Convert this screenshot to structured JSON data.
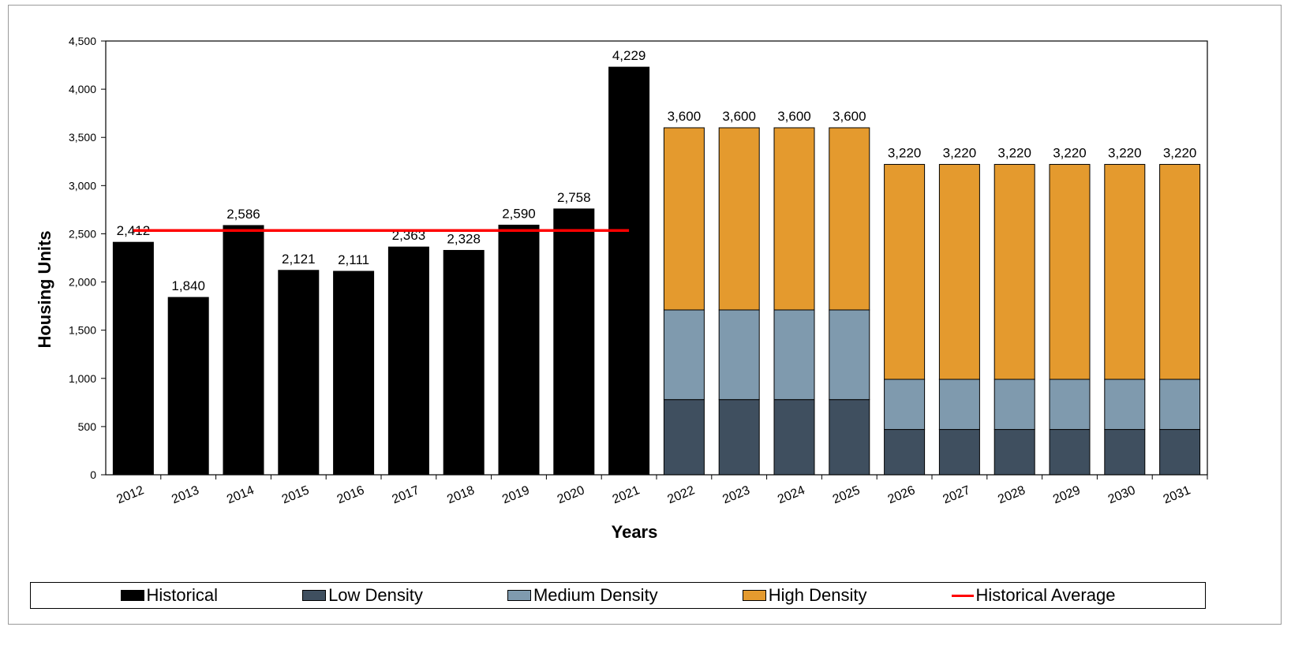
{
  "chart_data": {
    "type": "bar",
    "stacked": true,
    "title": "",
    "xlabel": "Years",
    "ylabel": "Housing Units",
    "ylim": [
      0,
      4500
    ],
    "yticks": [
      0,
      500,
      1000,
      1500,
      2000,
      2500,
      3000,
      3500,
      4000,
      4500
    ],
    "ytick_labels": [
      "0",
      "500",
      "1,000",
      "1,500",
      "2,000",
      "2,500",
      "3,000",
      "3,500",
      "4,000",
      "4,500"
    ],
    "categories": [
      "2012",
      "2013",
      "2014",
      "2015",
      "2016",
      "2017",
      "2018",
      "2019",
      "2020",
      "2021",
      "2022",
      "2023",
      "2024",
      "2025",
      "2026",
      "2027",
      "2028",
      "2029",
      "2030",
      "2031"
    ],
    "series": [
      {
        "name": "Historical",
        "color": "#000000",
        "values": [
          2412,
          1840,
          2586,
          2121,
          2111,
          2363,
          2328,
          2590,
          2758,
          4229,
          0,
          0,
          0,
          0,
          0,
          0,
          0,
          0,
          0,
          0
        ]
      },
      {
        "name": "Low Density",
        "color": "#3f4f5f",
        "values": [
          0,
          0,
          0,
          0,
          0,
          0,
          0,
          0,
          0,
          0,
          780,
          780,
          780,
          780,
          470,
          470,
          470,
          470,
          470,
          470
        ]
      },
      {
        "name": "Medium Density",
        "color": "#7f9aae",
        "values": [
          0,
          0,
          0,
          0,
          0,
          0,
          0,
          0,
          0,
          0,
          930,
          930,
          930,
          930,
          520,
          520,
          520,
          520,
          520,
          520
        ]
      },
      {
        "name": "High Density",
        "color": "#e49a2e",
        "values": [
          0,
          0,
          0,
          0,
          0,
          0,
          0,
          0,
          0,
          0,
          1890,
          1890,
          1890,
          1890,
          2230,
          2230,
          2230,
          2230,
          2230,
          2230
        ]
      }
    ],
    "total_labels": [
      "2,412",
      "1,840",
      "2,586",
      "2,121",
      "2,111",
      "2,363",
      "2,328",
      "2,590",
      "2,758",
      "4,229",
      "3,600",
      "3,600",
      "3,600",
      "3,600",
      "3,220",
      "3,220",
      "3,220",
      "3,220",
      "3,220",
      "3,220"
    ],
    "reference_line": {
      "name": "Historical Average",
      "color": "#ff0000",
      "value": 2534,
      "from": "2012",
      "to": "2021"
    },
    "legend": {
      "position": "bottom",
      "items": [
        {
          "label": "Historical",
          "color": "#000000",
          "kind": "box"
        },
        {
          "label": "Low Density",
          "color": "#3f4f5f",
          "kind": "box"
        },
        {
          "label": "Medium Density",
          "color": "#7f9aae",
          "kind": "box"
        },
        {
          "label": "High Density",
          "color": "#e49a2e",
          "kind": "box"
        },
        {
          "label": "Historical Average",
          "color": "#ff0000",
          "kind": "line"
        }
      ]
    },
    "grid": false
  }
}
